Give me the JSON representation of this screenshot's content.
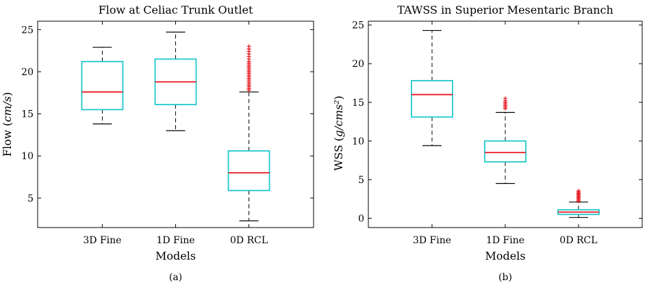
{
  "chart_data": [
    {
      "type": "box",
      "title": "Flow at Celiac Trunk Outlet",
      "xlabel": "Models",
      "ylabel_text": "Flow",
      "ylabel_unit": "cm/s",
      "caption": "(a)",
      "ylim": [
        1.5,
        26
      ],
      "yticks": [
        5,
        10,
        15,
        20,
        25
      ],
      "categories": [
        "3D Fine",
        "1D Fine",
        "0D RCL"
      ],
      "boxes": [
        {
          "category": "3D Fine",
          "whisker_low": 13.8,
          "q1": 15.5,
          "median": 17.6,
          "q3": 21.2,
          "whisker_high": 22.9,
          "outliers": []
        },
        {
          "category": "1D Fine",
          "whisker_low": 13.0,
          "q1": 16.1,
          "median": 18.8,
          "q3": 21.5,
          "whisker_high": 24.7,
          "outliers": []
        },
        {
          "category": "0D RCL",
          "whisker_low": 2.3,
          "q1": 5.9,
          "median": 8.0,
          "q3": 10.6,
          "whisker_high": 17.6,
          "outliers": [
            17.8,
            18.0,
            18.2,
            18.4,
            18.6,
            18.8,
            19.0,
            19.2,
            19.4,
            19.6,
            19.8,
            20.0,
            20.2,
            20.4,
            20.6,
            20.8,
            21.0,
            21.2,
            21.5,
            21.8,
            22.1,
            22.4,
            22.7,
            23.0
          ]
        }
      ]
    },
    {
      "type": "box",
      "title": "TAWSS in Superior Mesentaric Branch",
      "xlabel": "Models",
      "ylabel_text": "WSS",
      "ylabel_unit": "g/cms²",
      "caption": "(b)",
      "ylim": [
        -1.2,
        25.5
      ],
      "yticks": [
        0,
        5,
        10,
        15,
        20,
        25
      ],
      "categories": [
        "3D Fine",
        "1D Fine",
        "0D RCL"
      ],
      "boxes": [
        {
          "category": "3D Fine",
          "whisker_low": 9.4,
          "q1": 13.1,
          "median": 16.0,
          "q3": 17.8,
          "whisker_high": 24.3,
          "outliers": []
        },
        {
          "category": "1D Fine",
          "whisker_low": 4.5,
          "q1": 7.3,
          "median": 8.5,
          "q3": 10.0,
          "whisker_high": 13.7,
          "outliers": [
            14.2,
            14.4,
            14.6,
            14.8,
            15.0,
            15.2,
            15.5
          ]
        },
        {
          "category": "0D RCL",
          "whisker_low": 0.1,
          "q1": 0.5,
          "median": 0.8,
          "q3": 1.1,
          "whisker_high": 2.1,
          "outliers": [
            2.2,
            2.35,
            2.5,
            2.65,
            2.8,
            2.95,
            3.1,
            3.25,
            3.4,
            3.55
          ]
        }
      ]
    }
  ],
  "colors": {
    "box": "#1fc8cf",
    "median": "#e8161d",
    "outlier": "#e8161d",
    "whisker": "#000000"
  }
}
